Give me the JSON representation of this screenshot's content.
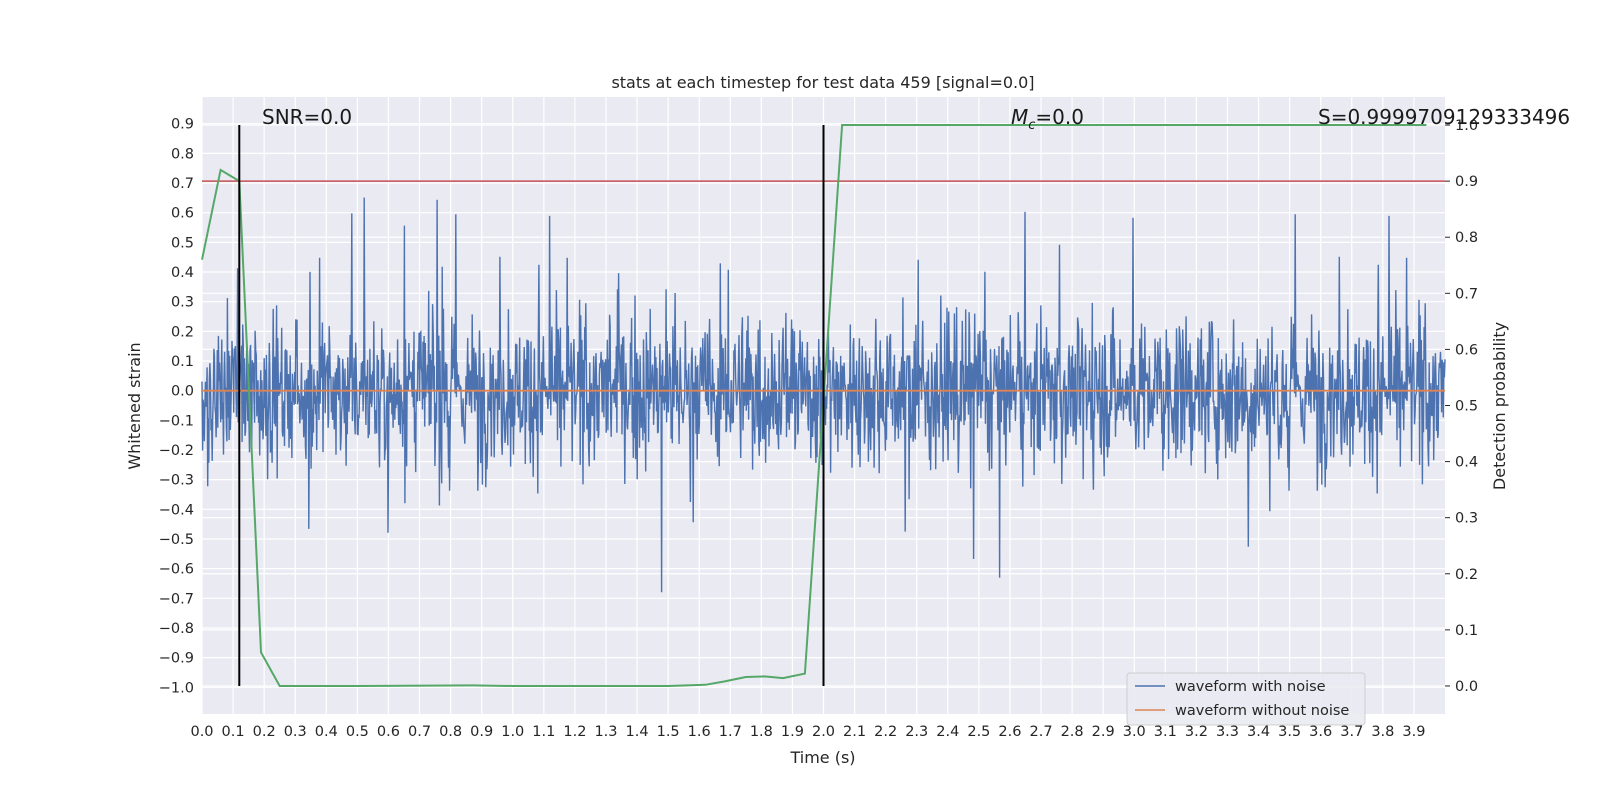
{
  "chart_data": {
    "type": "line",
    "title": "stats at each timestep for test data 459 [signal=0.0]",
    "xlabel": "Time (s)",
    "ylabel": "Whitened strain",
    "ylabel_right": "Detection probability",
    "xlim": [
      0.0,
      4.0
    ],
    "ylim": [
      -1.09,
      0.99
    ],
    "ylim_right": [
      -0.05,
      1.05
    ],
    "x_ticks": [
      "0.0",
      "0.1",
      "0.2",
      "0.3",
      "0.4",
      "0.5",
      "0.6",
      "0.7",
      "0.8",
      "0.9",
      "1.0",
      "1.1",
      "1.2",
      "1.3",
      "1.4",
      "1.5",
      "1.6",
      "1.7",
      "1.8",
      "1.9",
      "2.0",
      "2.1",
      "2.2",
      "2.3",
      "2.4",
      "2.5",
      "2.6",
      "2.7",
      "2.8",
      "2.9",
      "3.0",
      "3.1",
      "3.2",
      "3.3",
      "3.4",
      "3.5",
      "3.6",
      "3.7",
      "3.8",
      "3.9"
    ],
    "y_ticks": [
      "0.9",
      "0.8",
      "0.7",
      "0.6",
      "0.5",
      "0.4",
      "0.3",
      "0.2",
      "0.1",
      "0.0",
      "−0.1",
      "−0.2",
      "−0.3",
      "−0.4",
      "−0.5",
      "−0.6",
      "−0.7",
      "−0.8",
      "−0.9",
      "−1.0"
    ],
    "y_ticks_right": [
      "1.0",
      "0.9",
      "0.8",
      "0.7",
      "0.6",
      "0.5",
      "0.4",
      "0.3",
      "0.2",
      "0.1",
      "0.0"
    ],
    "grid": true,
    "legend_position": "bottom-right",
    "series": [
      {
        "name": "waveform with noise",
        "color": "#4c72b0",
        "style": "noisy strain, range about −1.0 to 0.9",
        "axis": "left"
      },
      {
        "name": "waveform without noise",
        "color": "#dd8452",
        "x": [
          0.0,
          4.0
        ],
        "y": [
          0.0,
          0.0
        ],
        "axis": "left"
      },
      {
        "color": "#55a868",
        "axis": "right",
        "x": [
          0.0,
          0.06,
          0.12,
          0.19,
          0.25,
          0.31,
          0.5,
          0.87,
          1.0,
          1.25,
          1.5,
          1.62,
          1.68,
          1.75,
          1.81,
          1.87,
          1.94,
          2.0,
          2.06,
          2.5,
          3.0,
          3.5,
          3.94
        ],
        "y": [
          0.76,
          0.92,
          0.9,
          0.06,
          0.0,
          0.0,
          0.0,
          0.001,
          0.0,
          0.0,
          0.0,
          0.002,
          0.008,
          0.016,
          0.017,
          0.014,
          0.022,
          0.51,
          1.0,
          1.0,
          1.0,
          1.0,
          1.0
        ]
      }
    ],
    "hlines": [
      {
        "y_right": 0.9,
        "color": "#c44e52"
      }
    ],
    "vlines": [
      {
        "x": 0.12,
        "color": "#000000"
      },
      {
        "x": 2.0,
        "color": "#000000"
      }
    ],
    "annotations": [
      "SNR=0.0",
      "M",
      "c",
      "=0.0",
      "S=0.9999709129333496"
    ]
  }
}
